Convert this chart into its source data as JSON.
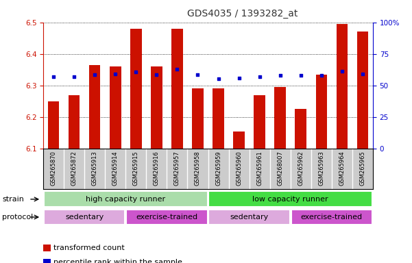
{
  "title": "GDS4035 / 1393282_at",
  "samples": [
    "GSM265870",
    "GSM265872",
    "GSM265913",
    "GSM265914",
    "GSM265915",
    "GSM265916",
    "GSM265957",
    "GSM265958",
    "GSM265959",
    "GSM265960",
    "GSM265961",
    "GSM268007",
    "GSM265962",
    "GSM265963",
    "GSM265964",
    "GSM265965"
  ],
  "bar_values": [
    6.25,
    6.27,
    6.365,
    6.36,
    6.48,
    6.36,
    6.48,
    6.29,
    6.29,
    6.155,
    6.27,
    6.295,
    6.225,
    6.335,
    6.495,
    6.47
  ],
  "percentile_values": [
    6.328,
    6.328,
    6.335,
    6.337,
    6.343,
    6.335,
    6.352,
    6.335,
    6.322,
    6.323,
    6.328,
    6.332,
    6.332,
    6.332,
    6.345,
    6.337
  ],
  "ylim_left": [
    6.1,
    6.5
  ],
  "yticks_left": [
    6.1,
    6.2,
    6.3,
    6.4,
    6.5
  ],
  "yticks_right": [
    0,
    25,
    50,
    75,
    100
  ],
  "bar_color": "#cc1100",
  "percentile_color": "#0000cc",
  "bar_width": 0.55,
  "strain_groups": [
    {
      "label": "high capacity runner",
      "start": 0,
      "end": 8,
      "color": "#aaddaa"
    },
    {
      "label": "low capacity runner",
      "start": 8,
      "end": 16,
      "color": "#44dd44"
    }
  ],
  "protocol_groups": [
    {
      "label": "sedentary",
      "start": 0,
      "end": 4,
      "color": "#ddaadd"
    },
    {
      "label": "exercise-trained",
      "start": 4,
      "end": 8,
      "color": "#cc55cc"
    },
    {
      "label": "sedentary",
      "start": 8,
      "end": 12,
      "color": "#ddaadd"
    },
    {
      "label": "exercise-trained",
      "start": 12,
      "end": 16,
      "color": "#cc55cc"
    }
  ],
  "legend_items": [
    {
      "label": "transformed count",
      "color": "#cc1100"
    },
    {
      "label": "percentile rank within the sample",
      "color": "#0000cc"
    }
  ],
  "left_tick_color": "#cc1100",
  "right_tick_color": "#0000cc",
  "sample_bg_color": "#cccccc",
  "sample_border_color": "#aaaaaa"
}
